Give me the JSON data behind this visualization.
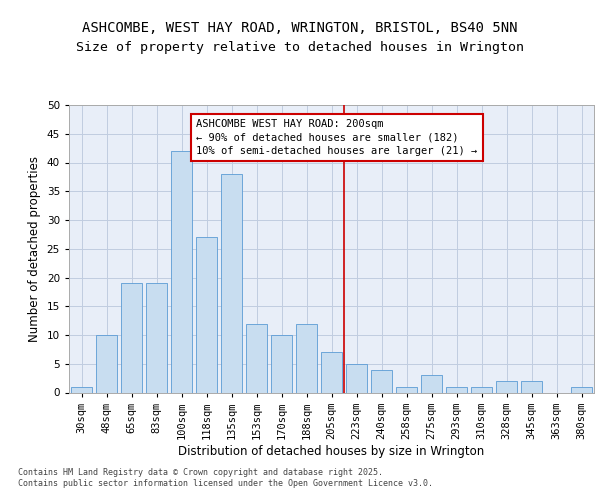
{
  "title_line1": "ASHCOMBE, WEST HAY ROAD, WRINGTON, BRISTOL, BS40 5NN",
  "title_line2": "Size of property relative to detached houses in Wrington",
  "xlabel": "Distribution of detached houses by size in Wrington",
  "ylabel": "Number of detached properties",
  "bar_color": "#c8ddf0",
  "bar_edge_color": "#5b9bd5",
  "background_color": "#e8eef8",
  "categories": [
    "30sqm",
    "48sqm",
    "65sqm",
    "83sqm",
    "100sqm",
    "118sqm",
    "135sqm",
    "153sqm",
    "170sqm",
    "188sqm",
    "205sqm",
    "223sqm",
    "240sqm",
    "258sqm",
    "275sqm",
    "293sqm",
    "310sqm",
    "328sqm",
    "345sqm",
    "363sqm",
    "380sqm"
  ],
  "values": [
    1,
    10,
    19,
    19,
    42,
    27,
    38,
    12,
    10,
    12,
    7,
    5,
    4,
    1,
    3,
    1,
    1,
    2,
    2,
    0,
    1
  ],
  "ylim": [
    0,
    50
  ],
  "yticks": [
    0,
    5,
    10,
    15,
    20,
    25,
    30,
    35,
    40,
    45,
    50
  ],
  "vline_x": 10.5,
  "vline_color": "#cc0000",
  "annotation_text": "ASHCOMBE WEST HAY ROAD: 200sqm\n← 90% of detached houses are smaller (182)\n10% of semi-detached houses are larger (21) →",
  "footer_text": "Contains HM Land Registry data © Crown copyright and database right 2025.\nContains public sector information licensed under the Open Government Licence v3.0.",
  "grid_color": "#c0cce0",
  "title_fontsize": 10,
  "subtitle_fontsize": 9.5,
  "label_fontsize": 8.5,
  "tick_fontsize": 7.5,
  "annotation_fontsize": 7.5,
  "footer_fontsize": 6
}
